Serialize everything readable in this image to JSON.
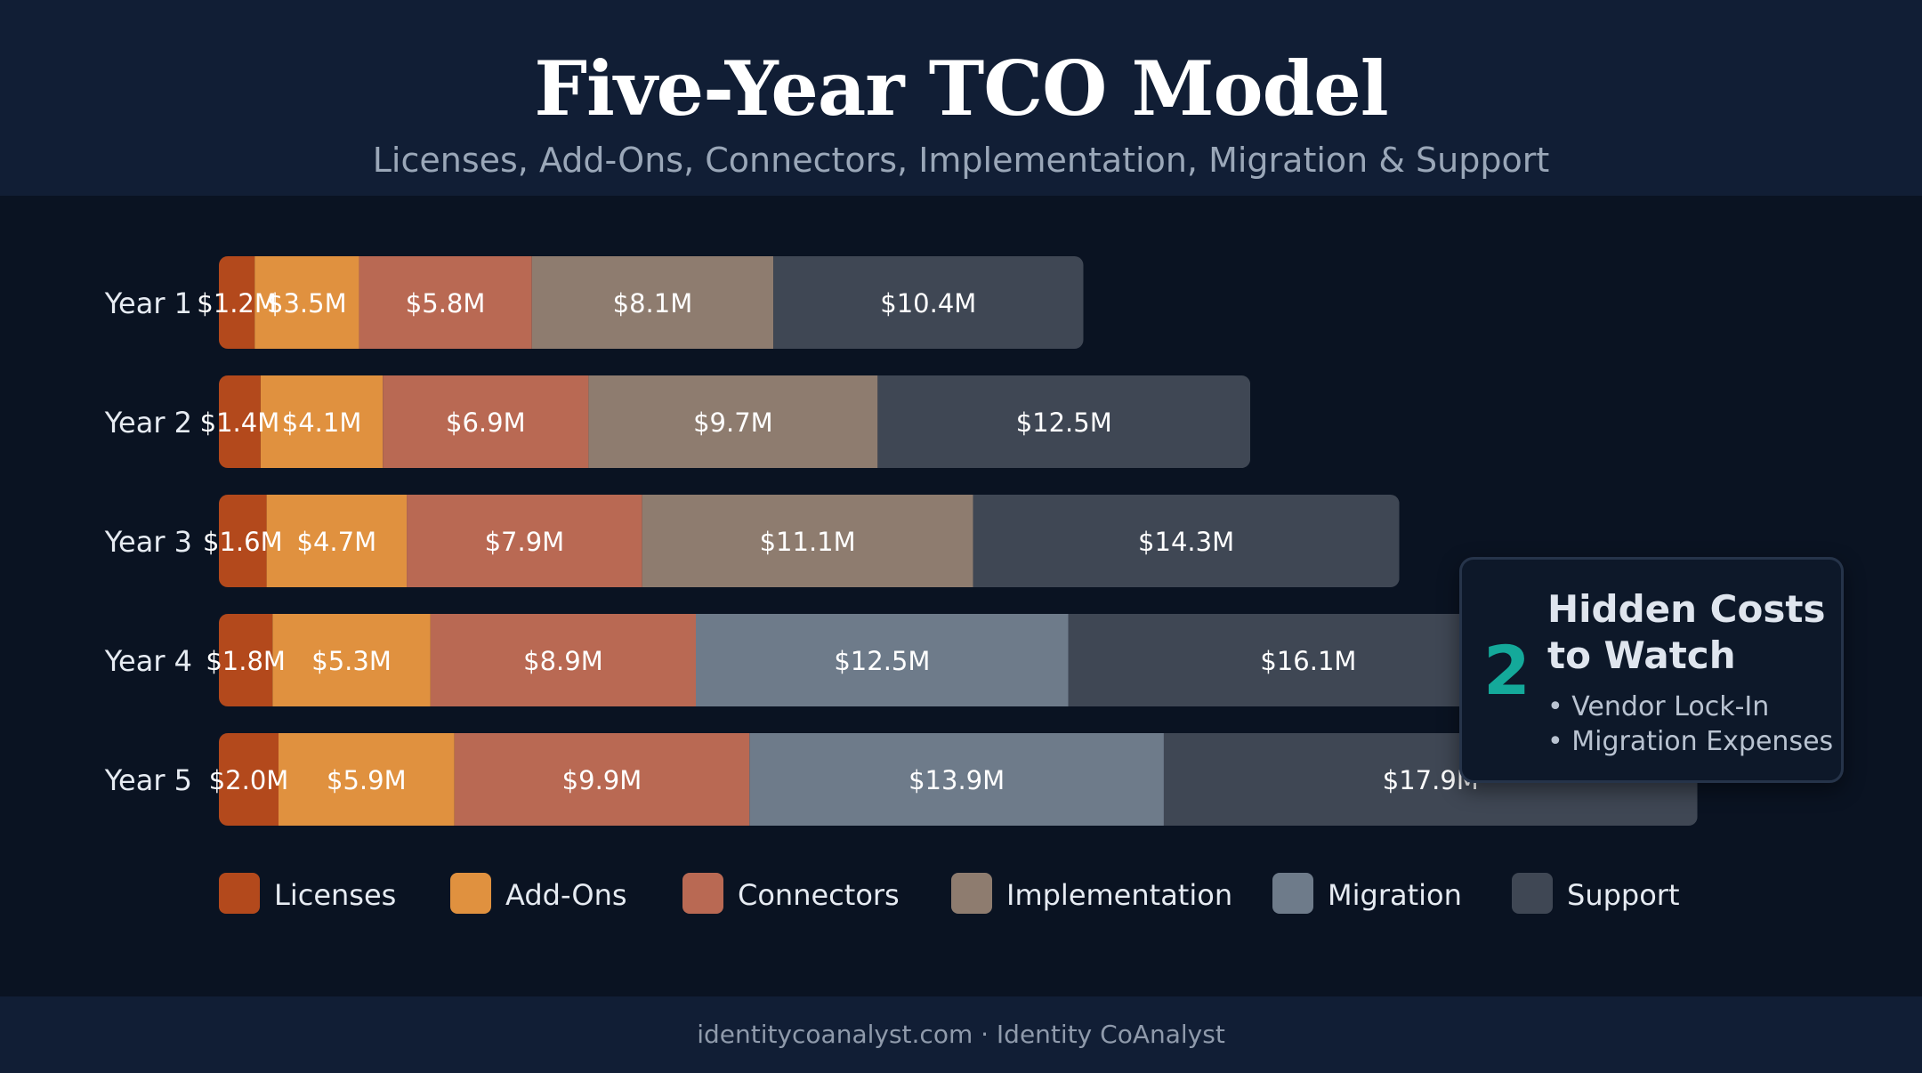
{
  "header": {
    "title": "Five-Year TCO Model",
    "subtitle": "Licenses, Add-Ons, Connectors, Implementation, Migration & Support"
  },
  "colors": {
    "Licenses": "#b3491c",
    "Add-Ons": "#e0913f",
    "Connectors": "#b96953",
    "Implementation": "#8e7c6f",
    "Migration": "#6e7b8a",
    "Support": "#3f4754",
    "accent": "#14a99a"
  },
  "chart_data": {
    "type": "bar",
    "orientation": "horizontal",
    "stacked": true,
    "categories": [
      "Year 1",
      "Year 2",
      "Year 3",
      "Year 4",
      "Year 5"
    ],
    "series": [
      {
        "name": "Licenses",
        "values": [
          1.2,
          1.4,
          1.6,
          1.8,
          2.0
        ]
      },
      {
        "name": "Add-Ons",
        "values": [
          3.5,
          4.1,
          4.7,
          5.3,
          5.9
        ]
      },
      {
        "name": "Connectors",
        "values": [
          5.8,
          6.9,
          7.9,
          8.9,
          9.9
        ]
      },
      {
        "name": "Implementation",
        "values": [
          8.1,
          9.7,
          11.1,
          null,
          null
        ]
      },
      {
        "name": "Migration",
        "values": [
          null,
          null,
          null,
          12.5,
          13.9
        ]
      },
      {
        "name": "Support",
        "values": [
          10.4,
          12.5,
          14.3,
          16.1,
          17.9
        ]
      }
    ],
    "value_labels": [
      [
        "$1.2M",
        "$3.5M",
        "$5.8M",
        "$8.1M",
        "$10.4M"
      ],
      [
        "$1.4M",
        "$4.1M",
        "$6.9M",
        "$9.7M",
        "$12.5M"
      ],
      [
        "$1.6M",
        "$4.7M",
        "$7.9M",
        "$11.1M",
        "$14.3M"
      ],
      [
        "$1.8M",
        "$5.3M",
        "$8.9M",
        "$12.5M",
        "$16.1M"
      ],
      [
        "$2.0M",
        "$5.9M",
        "$9.9M",
        "$13.9M",
        "$17.9M"
      ]
    ],
    "legend": {
      "entries": [
        "Licenses",
        "Add-Ons",
        "Connectors",
        "Implementation",
        "Migration",
        "Support"
      ],
      "placement": "bottom"
    },
    "grid": false,
    "unit": "$M"
  },
  "callout": {
    "number": "2",
    "title": "Hidden Costs to Watch",
    "items": [
      "Vendor Lock-In",
      "Migration Expenses"
    ]
  },
  "footer": {
    "text": "identitycoanalyst.com · Identity CoAnalyst"
  }
}
